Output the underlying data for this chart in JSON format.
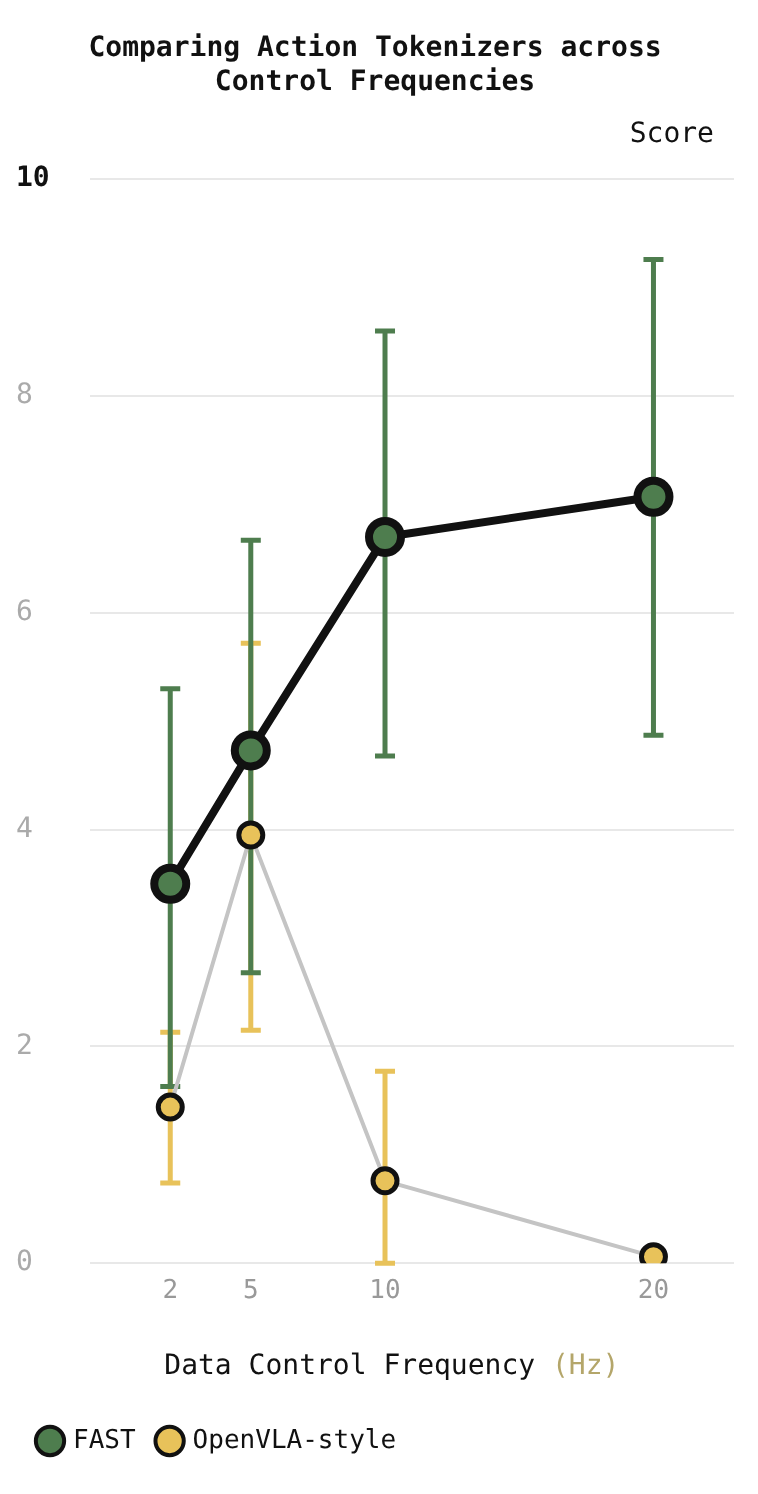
{
  "chart_data": {
    "type": "line",
    "title": "Comparing Action Tokenizers across Control Frequencies",
    "xlabel": "Data Control Frequency (Hz)",
    "ylabel": "Score",
    "x": [
      2,
      5,
      10,
      20
    ],
    "xlim": [
      -1,
      23
    ],
    "xticks": [
      2,
      5,
      10,
      20
    ],
    "ylim": [
      0,
      10
    ],
    "yticks": [
      0,
      2,
      4,
      6,
      8,
      10
    ],
    "grid": "y",
    "legend": "bottom",
    "marker": "circle",
    "series": [
      {
        "name": "FAST",
        "color": "#4e7d4e",
        "values": [
          3.5,
          4.73,
          6.7,
          7.07
        ],
        "errors": [
          [
            1.63,
            5.3
          ],
          [
            2.68,
            6.67
          ],
          [
            4.68,
            8.6
          ],
          [
            4.87,
            9.26
          ]
        ]
      },
      {
        "name": "OpenVLA-style",
        "color": "#e8c25a",
        "values": [
          1.44,
          3.95,
          0.76,
          0.06
        ],
        "errors": [
          [
            0.74,
            2.13
          ],
          [
            2.15,
            5.72
          ],
          [
            0,
            1.77
          ],
          null
        ]
      }
    ]
  }
}
